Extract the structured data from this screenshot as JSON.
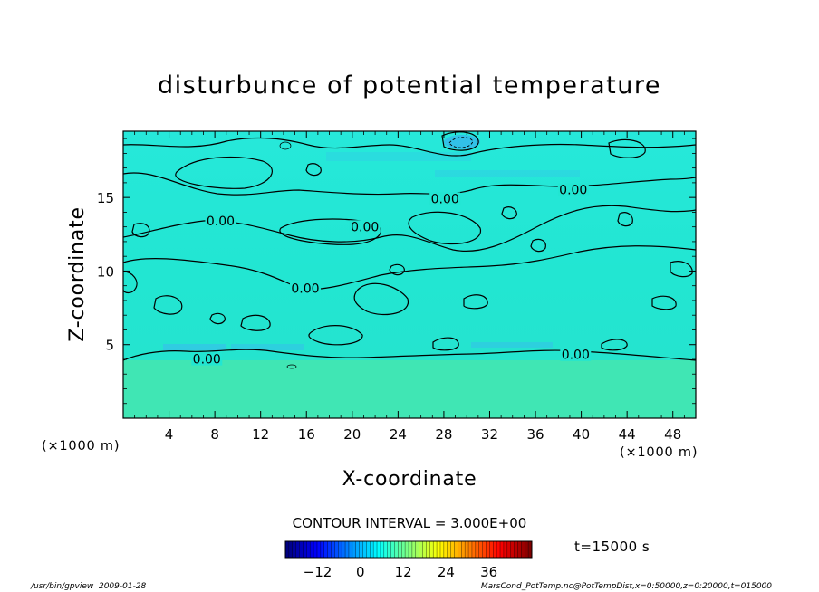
{
  "chart_data": {
    "type": "heatmap",
    "title": "disturbunce of potential temperature",
    "xlabel": "X-coordinate",
    "ylabel": "Z-coordinate",
    "x_unit": "(×1000 m)",
    "y_unit": "(×1000 m)",
    "xlim": [
      0,
      50
    ],
    "ylim": [
      0,
      19.5
    ],
    "x_ticks": [
      4,
      8,
      12,
      16,
      20,
      24,
      28,
      32,
      36,
      40,
      44,
      48
    ],
    "y_ticks": [
      5,
      10,
      15
    ],
    "contour_interval_text": "CONTOUR INTERVAL = 3.000E+00",
    "contour_level_labels": [
      {
        "x": 7.3,
        "z": 3.9,
        "text": "0.00"
      },
      {
        "x": 39.5,
        "z": 4.2,
        "text": "0.00"
      },
      {
        "x": 15.9,
        "z": 8.7,
        "text": "0.00"
      },
      {
        "x": 8.5,
        "z": 13.3,
        "text": "0.00"
      },
      {
        "x": 21.1,
        "z": 12.9,
        "text": "0.00"
      },
      {
        "x": 28.1,
        "z": 14.8,
        "text": "0.00"
      },
      {
        "x": 39.3,
        "z": 15.4,
        "text": "0.00"
      }
    ],
    "time_label": "t=15000 s",
    "colorbar": {
      "tick_labels": [
        "−12",
        "0",
        "12",
        "24",
        "36"
      ],
      "tick_values": [
        -12,
        0,
        12,
        24,
        36
      ],
      "range": [
        -21,
        48
      ],
      "colormap": "jet"
    },
    "field_description_values": {
      "background_value": 0,
      "colors": {
        "dominant": "#22e6d2",
        "low_band": "#3ab4f0",
        "lower_layer": "#3ce6b4"
      }
    }
  },
  "footer": {
    "left": "/usr/bin/gpview  2009-01-28",
    "right": "MarsCond_PotTemp.nc@PotTempDist,x=0:50000,z=0:20000,t=015000"
  }
}
